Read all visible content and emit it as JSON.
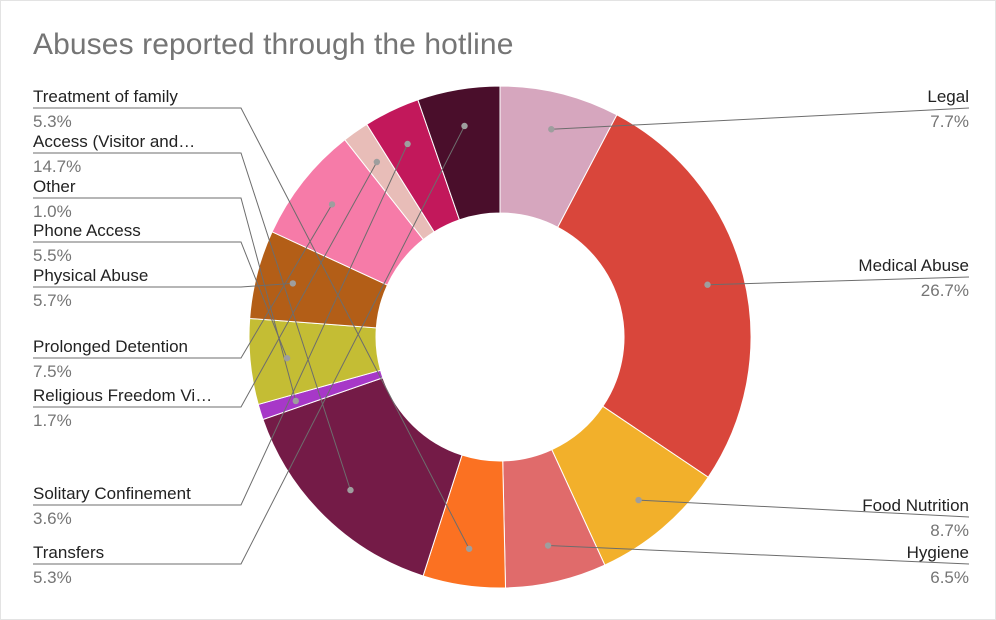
{
  "chart_data": {
    "type": "pie",
    "donut": true,
    "title": "Abuses reported through the hotline",
    "slices": [
      {
        "label": "Legal",
        "display_pct": "7.7%",
        "value": 7.7,
        "color": "#d6a6be",
        "side": "right"
      },
      {
        "label": "Medical Abuse",
        "display_pct": "26.7%",
        "value": 26.7,
        "color": "#d9463b",
        "side": "right"
      },
      {
        "label": "Food Nutrition",
        "display_pct": "8.7%",
        "value": 8.7,
        "color": "#f2b02b",
        "side": "right"
      },
      {
        "label": "Hygiene",
        "display_pct": "6.5%",
        "value": 6.5,
        "color": "#e06b6b",
        "side": "right"
      },
      {
        "label": "Treatment of family",
        "display_pct": "5.3%",
        "value": 5.3,
        "color": "#fb7122",
        "side": "left"
      },
      {
        "label": "Access (Visitor and…",
        "display_pct": "14.7%",
        "value": 14.7,
        "color": "#741b47",
        "side": "left"
      },
      {
        "label": "Other",
        "display_pct": "1.0%",
        "value": 1.0,
        "color": "#a738c8",
        "side": "left"
      },
      {
        "label": "Phone Access",
        "display_pct": "5.5%",
        "value": 5.5,
        "color": "#c4bd34",
        "side": "left"
      },
      {
        "label": "Physical Abuse",
        "display_pct": "5.7%",
        "value": 5.7,
        "color": "#b35e17",
        "side": "left"
      },
      {
        "label": "Prolonged Detention",
        "display_pct": "7.5%",
        "value": 7.5,
        "color": "#f67ba8",
        "side": "left"
      },
      {
        "label": "Religious Freedom Vi…",
        "display_pct": "1.7%",
        "value": 1.7,
        "color": "#e8bdb8",
        "side": "left"
      },
      {
        "label": "Solitary Confinement",
        "display_pct": "3.6%",
        "value": 3.6,
        "color": "#c2185b",
        "side": "left"
      },
      {
        "label": "Transfers",
        "display_pct": "5.3%",
        "value": 5.3,
        "color": "#4a0e2b",
        "side": "left"
      }
    ],
    "legend": "none",
    "label_style": "outside labels with leader lines"
  }
}
